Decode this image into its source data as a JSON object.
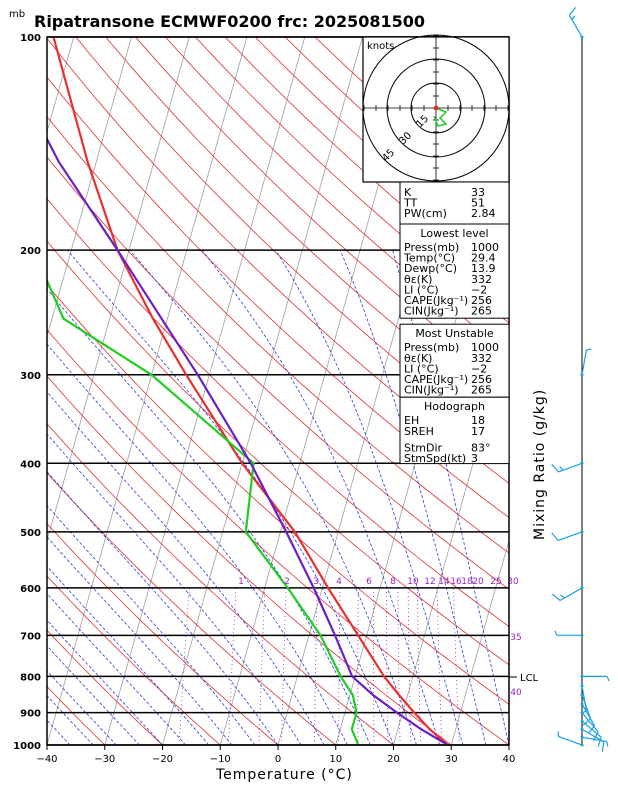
{
  "title": "Ripatransone ECMWF0200  frc: 2025081500",
  "unit_mb": "mb",
  "hodograph": {
    "unit": "knots",
    "rings": [
      "15",
      "30",
      "45"
    ]
  },
  "indices": [
    {
      "label": "K",
      "value": "33"
    },
    {
      "label": "TT",
      "value": "51"
    },
    {
      "label": "PW(cm)",
      "value": "2.84"
    }
  ],
  "lowest_level": {
    "header": "Lowest level",
    "rows": [
      {
        "label": "Press(mb)",
        "value": "1000"
      },
      {
        "label": "Temp(°C)",
        "value": "29.4"
      },
      {
        "label": "Dewp(°C)",
        "value": "13.9"
      },
      {
        "label": "θε(K)",
        "value": "332"
      },
      {
        "label": "LI  (°C)",
        "value": "−2"
      },
      {
        "label": "CAPE(Jkg⁻¹)",
        "value": "256"
      },
      {
        "label": "CIN(Jkg⁻¹)",
        "value": "265"
      }
    ]
  },
  "most_unstable": {
    "header": "Most Unstable",
    "rows": [
      {
        "label": "Press(mb)",
        "value": "1000"
      },
      {
        "label": "θε(K)",
        "value": "332"
      },
      {
        "label": "LI  (°C)",
        "value": "−2"
      },
      {
        "label": "CAPE(Jkg⁻¹)",
        "value": "256"
      },
      {
        "label": "CIN(Jkg⁻¹)",
        "value": "265"
      }
    ]
  },
  "hodograph_table": {
    "header": "Hodograph",
    "rows": [
      {
        "label": "EH",
        "value": "18"
      },
      {
        "label": "SREH",
        "value": "17"
      },
      {
        "label": "StmDir",
        "value": "83°"
      },
      {
        "label": "StmSpd(kt)",
        "value": "3"
      }
    ]
  },
  "lcl_label": "LCL",
  "mixing_ratio_label": "Mixing Ratio  (g/kg)",
  "colors": {
    "temperature": "#e83030",
    "dewpoint": "#22cc22",
    "parcel": "#6a1fc8",
    "dry_adiabat": "#e03030",
    "moist_adiabat": "#2040e0",
    "isotherm": "#a0a0a0",
    "mixing_ratio": "#b020c0",
    "wind": "#1aa0e0"
  },
  "chart_data": {
    "type": "line",
    "title": "Ripatransone ECMWF0200  frc: 2025081500",
    "xlabel": "Temperature (°C)",
    "ylabel": "mb",
    "x_ticks": [
      -40,
      -30,
      -20,
      -10,
      0,
      10,
      20,
      30,
      40
    ],
    "pressure_ticks": [
      100,
      200,
      300,
      400,
      500,
      600,
      700,
      800,
      900,
      1000
    ],
    "xlim": [
      -40,
      40
    ],
    "ylim_mb": [
      1000,
      100
    ],
    "mixing_ratio_labels": [
      "1",
      "2",
      "3",
      "4",
      "6",
      "8",
      "10",
      "12",
      "14",
      "16",
      "18",
      "20",
      "25",
      "30",
      "35",
      "40"
    ],
    "series": [
      {
        "name": "Temperature",
        "points": [
          [
            1000,
            29.4
          ],
          [
            950,
            25.5
          ],
          [
            900,
            22.0
          ],
          [
            850,
            18.5
          ],
          [
            800,
            15.0
          ],
          [
            700,
            8.5
          ],
          [
            600,
            1.0
          ],
          [
            500,
            -7.5
          ],
          [
            400,
            -20.0
          ],
          [
            300,
            -34.0
          ],
          [
            250,
            -42.5
          ],
          [
            200,
            -52.0
          ],
          [
            150,
            -61.5
          ],
          [
            100,
            -73.5
          ]
        ]
      },
      {
        "name": "Dewpoint",
        "points": [
          [
            1000,
            13.9
          ],
          [
            950,
            12.0
          ],
          [
            900,
            12.0
          ],
          [
            850,
            10.5
          ],
          [
            800,
            7.5
          ],
          [
            700,
            2.0
          ],
          [
            600,
            -6.0
          ],
          [
            500,
            -16.0
          ],
          [
            400,
            -18.0
          ],
          [
            300,
            -40.0
          ],
          [
            250,
            -58.0
          ],
          [
            200,
            -66.5
          ],
          [
            150,
            -73.5
          ],
          [
            100,
            -82.0
          ]
        ]
      },
      {
        "name": "Parcel",
        "points": [
          [
            1000,
            29.4
          ],
          [
            950,
            24.0
          ],
          [
            900,
            19.0
          ],
          [
            850,
            14.0
          ],
          [
            800,
            9.5
          ],
          [
            700,
            4.5
          ],
          [
            600,
            -1.5
          ],
          [
            500,
            -9.0
          ],
          [
            400,
            -18.5
          ],
          [
            300,
            -32.0
          ],
          [
            250,
            -41.0
          ],
          [
            200,
            -52.0
          ],
          [
            150,
            -66.5
          ],
          [
            120,
            -76.0
          ]
        ]
      }
    ],
    "wind_barbs": [
      {
        "p": 1000,
        "dir": 290,
        "spd": 5
      },
      {
        "p": 975,
        "dir": 100,
        "spd": 5
      },
      {
        "p": 950,
        "dir": 120,
        "spd": 10
      },
      {
        "p": 925,
        "dir": 130,
        "spd": 10
      },
      {
        "p": 900,
        "dir": 140,
        "spd": 10
      },
      {
        "p": 875,
        "dir": 150,
        "spd": 10
      },
      {
        "p": 850,
        "dir": 160,
        "spd": 10
      },
      {
        "p": 825,
        "dir": 170,
        "spd": 5
      },
      {
        "p": 800,
        "dir": 90,
        "spd": 5
      },
      {
        "p": 700,
        "dir": 270,
        "spd": 5
      },
      {
        "p": 600,
        "dir": 240,
        "spd": 15
      },
      {
        "p": 500,
        "dir": 250,
        "spd": 10
      },
      {
        "p": 400,
        "dir": 250,
        "spd": 15
      },
      {
        "p": 300,
        "dir": 10,
        "spd": 5
      },
      {
        "p": 100,
        "dir": 330,
        "spd": 15
      }
    ]
  }
}
